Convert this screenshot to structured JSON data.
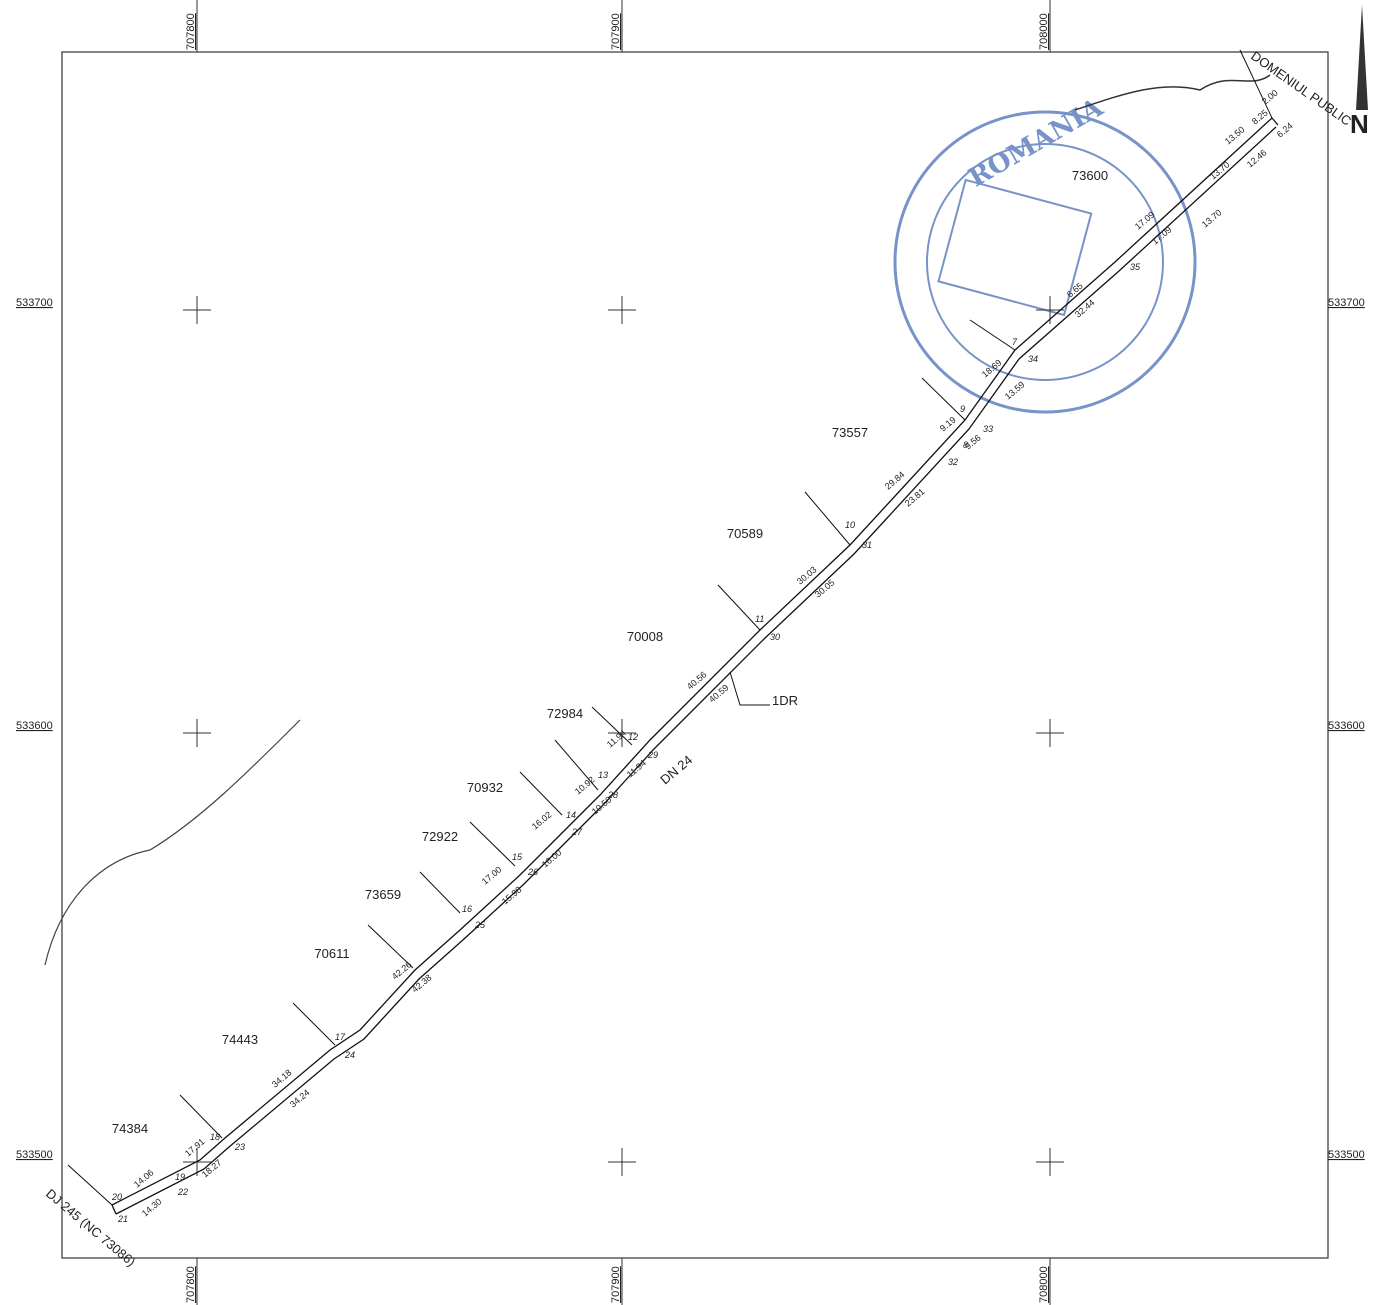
{
  "grid": {
    "x_labels": [
      "707800",
      "707900",
      "708000"
    ],
    "y_labels": [
      "533700",
      "533600",
      "533500"
    ]
  },
  "north": "N",
  "stamp": "ROMANIA",
  "parcels": [
    "73557",
    "70589",
    "70008",
    "72984",
    "70932",
    "72922",
    "73659",
    "70611",
    "74443",
    "74384",
    "73600"
  ],
  "roads": {
    "main": "DN 24",
    "county": "DJ 245 (NC 73086)",
    "public": "DOMENIUL PUBLIC",
    "marker": "1DR"
  },
  "distances_north": [
    "14.06",
    "17.91",
    "34.18",
    "42.26",
    "17.00",
    "16.02",
    "10.92",
    "11.94",
    "40.56",
    "30.03",
    "29.84",
    "9.19",
    "18.69",
    "6.65",
    "17.09",
    "13.70",
    "13.50",
    "8.25",
    "2.00"
  ],
  "distances_south": [
    "14.30",
    "18.27",
    "34.24",
    "42.38",
    "15.98",
    "16.00",
    "10.50",
    "11.94",
    "40.59",
    "30.05",
    "23.81",
    "9.56",
    "13.59",
    "32.44",
    "17.09",
    "13.70",
    "12.46",
    "6.24"
  ],
  "points_north": [
    "20",
    "19",
    "18",
    "17",
    "16",
    "15",
    "14",
    "13",
    "12",
    "11",
    "10",
    "9",
    "8",
    "7"
  ],
  "points_south": [
    "21",
    "22",
    "23",
    "24",
    "25",
    "26",
    "27",
    "28",
    "29",
    "30",
    "31",
    "32",
    "33",
    "34",
    "35"
  ]
}
